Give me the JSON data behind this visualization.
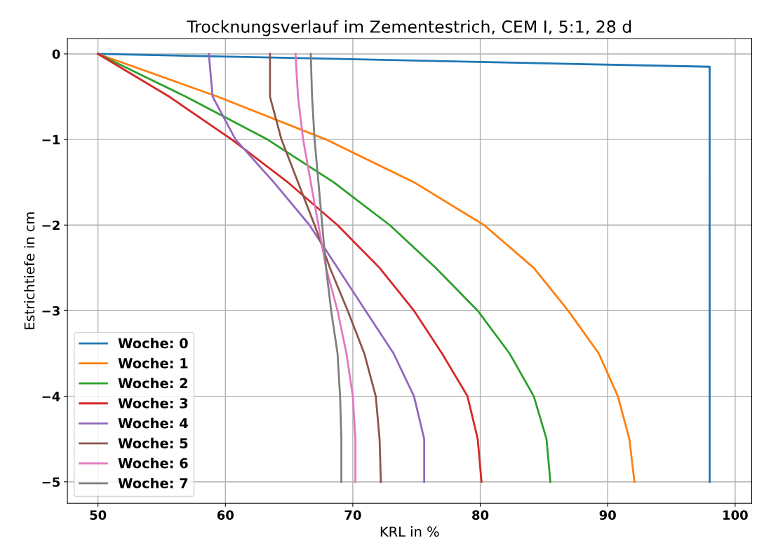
{
  "chart_data": {
    "type": "line",
    "title": "Trocknungsverlauf im Zementestrich, CEM I, 5:1, 28 d",
    "xlabel": "KRL in %",
    "ylabel": "Estrichtiefe in cm",
    "xlim": [
      47.6,
      101.3
    ],
    "ylim": [
      -5.25,
      0.18
    ],
    "xticks": [
      50,
      60,
      70,
      80,
      90,
      100
    ],
    "yticks": [
      {
        "value": -5,
        "label": "−5"
      },
      {
        "value": -4,
        "label": "−4"
      },
      {
        "value": -3,
        "label": "−3"
      },
      {
        "value": -2,
        "label": "−2"
      },
      {
        "value": -1,
        "label": "−1"
      },
      0
    ],
    "grid": true,
    "legend": "bottom left",
    "series": [
      {
        "name": "Woche: 0",
        "color": "#1f77b4",
        "x": [
          50,
          98,
          98
        ],
        "values": [
          0,
          -0.15,
          -5
        ]
      },
      {
        "name": "Woche: 1",
        "color": "#ff7f0e",
        "x": [
          50,
          59.4,
          67.9,
          74.8,
          80.3,
          84.2,
          86.9,
          89.3,
          90.8,
          91.7,
          92.1
        ],
        "values": [
          0,
          -0.5,
          -1,
          -1.5,
          -2,
          -2.5,
          -3,
          -3.5,
          -4,
          -4.5,
          -5
        ]
      },
      {
        "name": "Woche: 2",
        "color": "#2ca02c",
        "x": [
          50,
          56.9,
          63.3,
          68.5,
          72.9,
          76.5,
          79.8,
          82.3,
          84.2,
          85.2,
          85.5
        ],
        "values": [
          0,
          -0.5,
          -1,
          -1.5,
          -2,
          -2.5,
          -3,
          -3.5,
          -4,
          -4.5,
          -5
        ]
      },
      {
        "name": "Woche: 3",
        "color": "#d62728",
        "x": [
          50,
          55.6,
          60.5,
          64.9,
          68.8,
          72.1,
          74.8,
          77.0,
          79.0,
          79.8,
          80.1
        ],
        "values": [
          0,
          -0.5,
          -1,
          -1.5,
          -2,
          -2.5,
          -3,
          -3.5,
          -4,
          -4.5,
          -5
        ]
      },
      {
        "name": "Woche: 4",
        "color": "#9467bd",
        "x": [
          58.7,
          59.0,
          60.8,
          63.8,
          66.6,
          68.8,
          71.0,
          73.2,
          74.8,
          75.6,
          75.6
        ],
        "values": [
          0,
          -0.5,
          -1,
          -1.5,
          -2,
          -2.5,
          -3,
          -3.5,
          -4,
          -4.5,
          -5
        ]
      },
      {
        "name": "Woche: 5",
        "color": "#8c564b",
        "x": [
          63.5,
          63.5,
          64.4,
          65.7,
          67.0,
          68.2,
          69.6,
          70.9,
          71.8,
          72.1,
          72.2
        ],
        "values": [
          0,
          -0.5,
          -1,
          -1.5,
          -2,
          -2.5,
          -3,
          -3.5,
          -4,
          -4.5,
          -5
        ]
      },
      {
        "name": "Woche: 6",
        "color": "#e377c2",
        "x": [
          65.5,
          65.7,
          66.1,
          66.7,
          67.3,
          67.9,
          68.8,
          69.5,
          70.0,
          70.2,
          70.2
        ],
        "values": [
          0,
          -0.5,
          -1,
          -1.5,
          -2,
          -2.5,
          -3,
          -3.5,
          -4,
          -4.5,
          -5
        ]
      },
      {
        "name": "Woche: 7",
        "color": "#7f7f7f",
        "x": [
          66.7,
          66.8,
          67.0,
          67.3,
          67.6,
          67.9,
          68.3,
          68.8,
          69.0,
          69.1,
          69.1
        ],
        "values": [
          0,
          -0.5,
          -1,
          -1.5,
          -2,
          -2.5,
          -3,
          -3.5,
          -4,
          -4.5,
          -5
        ]
      }
    ]
  }
}
